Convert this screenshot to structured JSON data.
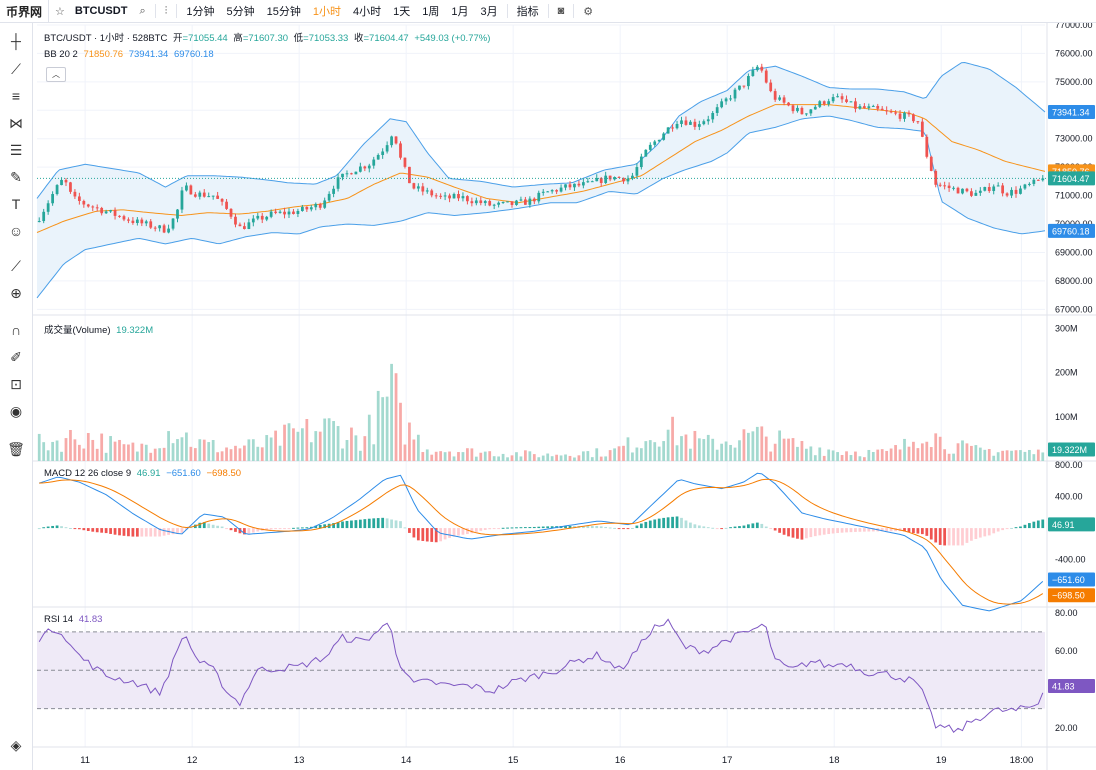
{
  "toolbar": {
    "brand": "币界网",
    "symbol": "BTCUSDT",
    "intervals": [
      "1分钟",
      "5分钟",
      "15分钟",
      "1小时",
      "4小时",
      "1天",
      "1周",
      "1月",
      "3月"
    ],
    "active_interval": "1小时",
    "indicators_label": "指标"
  },
  "left_tools": [
    "crosshair-icon",
    "trendline-icon",
    "fib-icon",
    "pattern-icon",
    "ruler-lines-icon",
    "brush-icon",
    "text-icon",
    "emoji-icon",
    "measure-icon",
    "zoom-icon",
    "magnet-icon",
    "lock-draw-icon",
    "lock-icon",
    "eye-icon",
    "trash-icon"
  ],
  "colors": {
    "up": "#26a69a",
    "down": "#ef5350",
    "vol_up": "#a3d9cf",
    "vol_down": "#f7aaa8",
    "bb_basis": "#f7931a",
    "bb_band": "#4a9fe8",
    "bb_fill": "#eaf3fb",
    "macd": "#2d8ce8",
    "signal": "#f57c00",
    "rsi": "#7e57c2",
    "rsi_fill": "#efeaf7"
  },
  "legend": {
    "title": "BTC/USDT · 1小时 · 528BTC",
    "open_label": "开",
    "open": "=71055.44",
    "high_label": "高",
    "high": "=71607.30",
    "low_label": "低",
    "low": "=71053.33",
    "close_label": "收",
    "close": "=71604.47",
    "change": "+549.03 (+0.77%)",
    "bb_label": "BB 20 2",
    "bb_basis": "71850.76",
    "bb_upper": "73941.34",
    "bb_lower": "69760.18",
    "vol_label": "成交量(Volume)",
    "vol_value": "19.322M",
    "macd_label": "MACD 12 26 close 9",
    "macd_hist": "46.91",
    "macd_line": "−651.60",
    "macd_signal": "−698.50",
    "rsi_label": "RSI 14",
    "rsi_value": "41.83"
  },
  "chart_data": {
    "type": "candlestick",
    "price_axis": {
      "ticks": [
        "77000.00",
        "76000.00",
        "75000.00",
        "74000.00",
        "73000.00",
        "72000.00",
        "71000.00",
        "70000.00",
        "69000.00",
        "68000.00",
        "67000.00"
      ],
      "ylim": [
        66800,
        77000
      ]
    },
    "price_markers": [
      {
        "value": 73941.34,
        "label": "73941.34",
        "color": "#2d8ce8"
      },
      {
        "value": 71850.76,
        "label": "71850.76",
        "color": "#f7931a"
      },
      {
        "value": 71604.47,
        "label": "71604.47",
        "color": "#26a69a"
      },
      {
        "value": 69760.18,
        "label": "69760.18",
        "color": "#2d8ce8"
      }
    ],
    "volume_axis": {
      "ticks": [
        "300M",
        "200M",
        "100M"
      ],
      "ylim": [
        0,
        330
      ],
      "unit": "M"
    },
    "volume_marker": {
      "value": 19.322,
      "label": "19.322M"
    },
    "macd_axis": {
      "ticks": [
        "800.00",
        "400.00",
        "-400.00"
      ],
      "ylim": [
        -1000,
        850
      ]
    },
    "macd_markers": [
      {
        "value": 46.91,
        "label": "46.91",
        "color": "#26a69a"
      },
      {
        "value": -651.6,
        "label": "−651.60",
        "color": "#2d8ce8"
      },
      {
        "value": -698.5,
        "label": "−698.50",
        "color": "#f57c00"
      }
    ],
    "rsi_axis": {
      "ticks": [
        "80.00",
        "60.00",
        "40.00",
        "20.00"
      ],
      "ylim": [
        10,
        83
      ],
      "bands": [
        70,
        50,
        30
      ]
    },
    "rsi_marker": {
      "value": 41.83,
      "label": "41.83"
    },
    "x_axis": {
      "labels": [
        "11",
        "12",
        "13",
        "14",
        "15",
        "16",
        "17",
        "18",
        "19",
        "18:00"
      ],
      "positions": [
        11,
        12,
        13,
        14,
        15,
        16,
        17,
        18,
        19,
        19.75
      ],
      "start": 10.55,
      "end": 19.97
    },
    "current_price": 71604.47,
    "price_keypoints": [
      [
        10.55,
        70100
      ],
      [
        10.72,
        71200
      ],
      [
        10.8,
        71600
      ],
      [
        10.88,
        70900
      ],
      [
        11.0,
        70700
      ],
      [
        11.15,
        70500
      ],
      [
        11.3,
        70300
      ],
      [
        11.45,
        70100
      ],
      [
        11.6,
        69950
      ],
      [
        11.75,
        69800
      ],
      [
        11.85,
        70300
      ],
      [
        11.92,
        71300
      ],
      [
        12.05,
        71050
      ],
      [
        12.2,
        71000
      ],
      [
        12.35,
        70400
      ],
      [
        12.45,
        69850
      ],
      [
        12.6,
        70150
      ],
      [
        12.75,
        70350
      ],
      [
        12.9,
        70400
      ],
      [
        13.05,
        70500
      ],
      [
        13.2,
        70700
      ],
      [
        13.35,
        71500
      ],
      [
        13.5,
        71900
      ],
      [
        13.65,
        72100
      ],
      [
        13.8,
        72700
      ],
      [
        13.88,
        73300
      ],
      [
        13.95,
        72250
      ],
      [
        14.05,
        71300
      ],
      [
        14.2,
        71100
      ],
      [
        14.35,
        70900
      ],
      [
        14.5,
        70950
      ],
      [
        14.65,
        70800
      ],
      [
        14.8,
        70650
      ],
      [
        15.0,
        70700
      ],
      [
        15.15,
        70800
      ],
      [
        15.3,
        71100
      ],
      [
        15.5,
        71300
      ],
      [
        15.7,
        71400
      ],
      [
        15.9,
        71650
      ],
      [
        16.1,
        71600
      ],
      [
        16.25,
        72600
      ],
      [
        16.4,
        73200
      ],
      [
        16.55,
        73700
      ],
      [
        16.7,
        73500
      ],
      [
        16.85,
        73800
      ],
      [
        17.0,
        74400
      ],
      [
        17.15,
        74900
      ],
      [
        17.3,
        75600
      ],
      [
        17.42,
        74500
      ],
      [
        17.55,
        74200
      ],
      [
        17.7,
        73900
      ],
      [
        17.85,
        74200
      ],
      [
        17.95,
        74400
      ],
      [
        18.05,
        74400
      ],
      [
        18.2,
        74100
      ],
      [
        18.35,
        74050
      ],
      [
        18.5,
        73900
      ],
      [
        18.65,
        73800
      ],
      [
        18.78,
        73650
      ],
      [
        18.85,
        72600
      ],
      [
        18.95,
        71400
      ],
      [
        19.05,
        71300
      ],
      [
        19.15,
        71200
      ],
      [
        19.25,
        71100
      ],
      [
        19.35,
        71050
      ],
      [
        19.5,
        71400
      ],
      [
        19.6,
        71100
      ],
      [
        19.7,
        71150
      ],
      [
        19.97,
        71604
      ]
    ],
    "volume_keypoints": [
      [
        10.55,
        40
      ],
      [
        11.0,
        60
      ],
      [
        11.3,
        35
      ],
      [
        11.5,
        30
      ],
      [
        11.85,
        80
      ],
      [
        12.0,
        45
      ],
      [
        12.3,
        30
      ],
      [
        12.7,
        40
      ],
      [
        12.9,
        60
      ],
      [
        13.3,
        80
      ],
      [
        13.6,
        50
      ],
      [
        13.88,
        170
      ],
      [
        13.95,
        90
      ],
      [
        14.2,
        30
      ],
      [
        14.6,
        22
      ],
      [
        15.0,
        18
      ],
      [
        15.3,
        14
      ],
      [
        15.6,
        20
      ],
      [
        15.9,
        20
      ],
      [
        16.2,
        50
      ],
      [
        16.4,
        80
      ],
      [
        16.55,
        60
      ],
      [
        16.8,
        40
      ],
      [
        17.1,
        55
      ],
      [
        17.3,
        60
      ],
      [
        17.6,
        40
      ],
      [
        18.0,
        25
      ],
      [
        18.3,
        20
      ],
      [
        18.5,
        20
      ],
      [
        18.7,
        40
      ],
      [
        18.85,
        90
      ],
      [
        19.0,
        45
      ],
      [
        19.3,
        25
      ],
      [
        19.6,
        25
      ],
      [
        19.97,
        18
      ]
    ],
    "macd_keypoints": [
      [
        10.55,
        560
      ],
      [
        10.75,
        650
      ],
      [
        10.95,
        580
      ],
      [
        11.2,
        420
      ],
      [
        11.45,
        180
      ],
      [
        11.7,
        -20
      ],
      [
        11.9,
        -80
      ],
      [
        12.1,
        180
      ],
      [
        12.3,
        140
      ],
      [
        12.5,
        -80
      ],
      [
        12.7,
        -60
      ],
      [
        12.9,
        -40
      ],
      [
        13.1,
        -10
      ],
      [
        13.3,
        120
      ],
      [
        13.55,
        350
      ],
      [
        13.8,
        620
      ],
      [
        13.95,
        670
      ],
      [
        14.1,
        240
      ],
      [
        14.3,
        -60
      ],
      [
        14.6,
        -140
      ],
      [
        14.9,
        -80
      ],
      [
        15.2,
        -40
      ],
      [
        15.5,
        30
      ],
      [
        15.8,
        90
      ],
      [
        16.1,
        40
      ],
      [
        16.3,
        300
      ],
      [
        16.55,
        620
      ],
      [
        16.7,
        560
      ],
      [
        16.95,
        500
      ],
      [
        17.15,
        580
      ],
      [
        17.3,
        710
      ],
      [
        17.45,
        560
      ],
      [
        17.7,
        190
      ],
      [
        17.9,
        120
      ],
      [
        18.15,
        50
      ],
      [
        18.4,
        -20
      ],
      [
        18.65,
        -90
      ],
      [
        18.85,
        -250
      ],
      [
        19.0,
        -650
      ],
      [
        19.2,
        -980
      ],
      [
        19.45,
        -1050
      ],
      [
        19.75,
        -920
      ],
      [
        19.97,
        -650
      ]
    ],
    "rsi_keypoints": [
      [
        10.55,
        66
      ],
      [
        10.72,
        72
      ],
      [
        10.8,
        69
      ],
      [
        10.9,
        60
      ],
      [
        11.0,
        55
      ],
      [
        11.2,
        47
      ],
      [
        11.45,
        44
      ],
      [
        11.7,
        38
      ],
      [
        11.85,
        58
      ],
      [
        11.92,
        70
      ],
      [
        12.05,
        55
      ],
      [
        12.2,
        50
      ],
      [
        12.35,
        37
      ],
      [
        12.45,
        33
      ],
      [
        12.6,
        50
      ],
      [
        12.8,
        51
      ],
      [
        13.0,
        52
      ],
      [
        13.25,
        57
      ],
      [
        13.4,
        67
      ],
      [
        13.6,
        65
      ],
      [
        13.85,
        75
      ],
      [
        13.92,
        56
      ],
      [
        14.05,
        43
      ],
      [
        14.2,
        44
      ],
      [
        14.4,
        42
      ],
      [
        14.6,
        42
      ],
      [
        14.8,
        39
      ],
      [
        15.0,
        44
      ],
      [
        15.2,
        47
      ],
      [
        15.4,
        50
      ],
      [
        15.6,
        55
      ],
      [
        15.8,
        58
      ],
      [
        16.0,
        50
      ],
      [
        16.15,
        60
      ],
      [
        16.3,
        72
      ],
      [
        16.45,
        75
      ],
      [
        16.6,
        62
      ],
      [
        16.8,
        60
      ],
      [
        17.0,
        66
      ],
      [
        17.2,
        70
      ],
      [
        17.35,
        74
      ],
      [
        17.45,
        55
      ],
      [
        17.6,
        50
      ],
      [
        17.8,
        55
      ],
      [
        17.95,
        52
      ],
      [
        18.1,
        54
      ],
      [
        18.3,
        49
      ],
      [
        18.5,
        48
      ],
      [
        18.7,
        45
      ],
      [
        18.8,
        42
      ],
      [
        18.85,
        34
      ],
      [
        18.95,
        21
      ],
      [
        19.05,
        20
      ],
      [
        19.15,
        18
      ],
      [
        19.3,
        24
      ],
      [
        19.5,
        29
      ],
      [
        19.7,
        29
      ],
      [
        19.9,
        32
      ],
      [
        19.97,
        42
      ]
    ],
    "bb_upper_keypoints": [
      [
        10.55,
        70900
      ],
      [
        10.75,
        71900
      ],
      [
        11.0,
        72100
      ],
      [
        11.25,
        71950
      ],
      [
        11.5,
        71800
      ],
      [
        11.75,
        71300
      ],
      [
        11.95,
        71700
      ],
      [
        12.2,
        71700
      ],
      [
        12.45,
        71650
      ],
      [
        12.7,
        71550
      ],
      [
        12.9,
        71450
      ],
      [
        13.15,
        71400
      ],
      [
        13.35,
        71700
      ],
      [
        13.6,
        72800
      ],
      [
        13.85,
        73700
      ],
      [
        14.0,
        73600
      ],
      [
        14.2,
        72500
      ],
      [
        14.4,
        71600
      ],
      [
        14.7,
        71500
      ],
      [
        15.0,
        71300
      ],
      [
        15.3,
        71400
      ],
      [
        15.55,
        71450
      ],
      [
        15.85,
        71900
      ],
      [
        16.15,
        72100
      ],
      [
        16.35,
        72800
      ],
      [
        16.55,
        73800
      ],
      [
        16.75,
        74300
      ],
      [
        17.0,
        74700
      ],
      [
        17.2,
        75400
      ],
      [
        17.45,
        75550
      ],
      [
        17.7,
        75200
      ],
      [
        17.95,
        74800
      ],
      [
        18.15,
        74750
      ],
      [
        18.4,
        74750
      ],
      [
        18.65,
        74650
      ],
      [
        18.85,
        74400
      ],
      [
        19.0,
        75200
      ],
      [
        19.2,
        75700
      ],
      [
        19.45,
        75450
      ],
      [
        19.7,
        74800
      ],
      [
        19.97,
        73941
      ]
    ],
    "bb_lower_keypoints": [
      [
        10.55,
        67400
      ],
      [
        10.8,
        68600
      ],
      [
        11.0,
        69100
      ],
      [
        11.25,
        69300
      ],
      [
        11.5,
        69500
      ],
      [
        11.75,
        69300
      ],
      [
        12.0,
        69500
      ],
      [
        12.25,
        69300
      ],
      [
        12.5,
        69550
      ],
      [
        12.75,
        69700
      ],
      [
        13.0,
        69650
      ],
      [
        13.2,
        69900
      ],
      [
        13.45,
        70000
      ],
      [
        13.7,
        69950
      ],
      [
        13.95,
        70100
      ],
      [
        14.2,
        70400
      ],
      [
        14.45,
        70300
      ],
      [
        14.75,
        70400
      ],
      [
        15.05,
        70550
      ],
      [
        15.35,
        70750
      ],
      [
        15.6,
        70750
      ],
      [
        15.9,
        71150
      ],
      [
        16.15,
        71050
      ],
      [
        16.4,
        71600
      ],
      [
        16.6,
        71900
      ],
      [
        16.85,
        72200
      ],
      [
        17.0,
        72500
      ],
      [
        17.2,
        73200
      ],
      [
        17.45,
        73400
      ],
      [
        17.7,
        73700
      ],
      [
        17.95,
        73800
      ],
      [
        18.15,
        73650
      ],
      [
        18.4,
        73400
      ],
      [
        18.65,
        73350
      ],
      [
        18.85,
        73250
      ],
      [
        19.0,
        70800
      ],
      [
        19.25,
        70200
      ],
      [
        19.5,
        69850
      ],
      [
        19.75,
        69650
      ],
      [
        19.97,
        69760
      ]
    ],
    "bb_basis_keypoints": [
      [
        10.55,
        69700
      ],
      [
        10.8,
        70100
      ],
      [
        11.1,
        70450
      ],
      [
        11.35,
        70500
      ],
      [
        11.6,
        70400
      ],
      [
        11.9,
        70300
      ],
      [
        12.15,
        70400
      ],
      [
        12.45,
        70350
      ],
      [
        12.7,
        70450
      ],
      [
        12.95,
        70600
      ],
      [
        13.2,
        70700
      ],
      [
        13.45,
        70900
      ],
      [
        13.7,
        71400
      ],
      [
        13.95,
        71800
      ],
      [
        14.2,
        71650
      ],
      [
        14.45,
        71300
      ],
      [
        14.75,
        70900
      ],
      [
        15.05,
        70750
      ],
      [
        15.35,
        70950
      ],
      [
        15.65,
        71150
      ],
      [
        15.95,
        71450
      ],
      [
        16.2,
        71700
      ],
      [
        16.45,
        72300
      ],
      [
        16.7,
        72900
      ],
      [
        16.95,
        73300
      ],
      [
        17.2,
        73800
      ],
      [
        17.45,
        74200
      ],
      [
        17.7,
        74200
      ],
      [
        17.95,
        74200
      ],
      [
        18.2,
        74100
      ],
      [
        18.45,
        74000
      ],
      [
        18.7,
        73900
      ],
      [
        18.85,
        73700
      ],
      [
        19.1,
        72900
      ],
      [
        19.35,
        72600
      ],
      [
        19.6,
        72200
      ],
      [
        19.97,
        71851
      ]
    ]
  }
}
